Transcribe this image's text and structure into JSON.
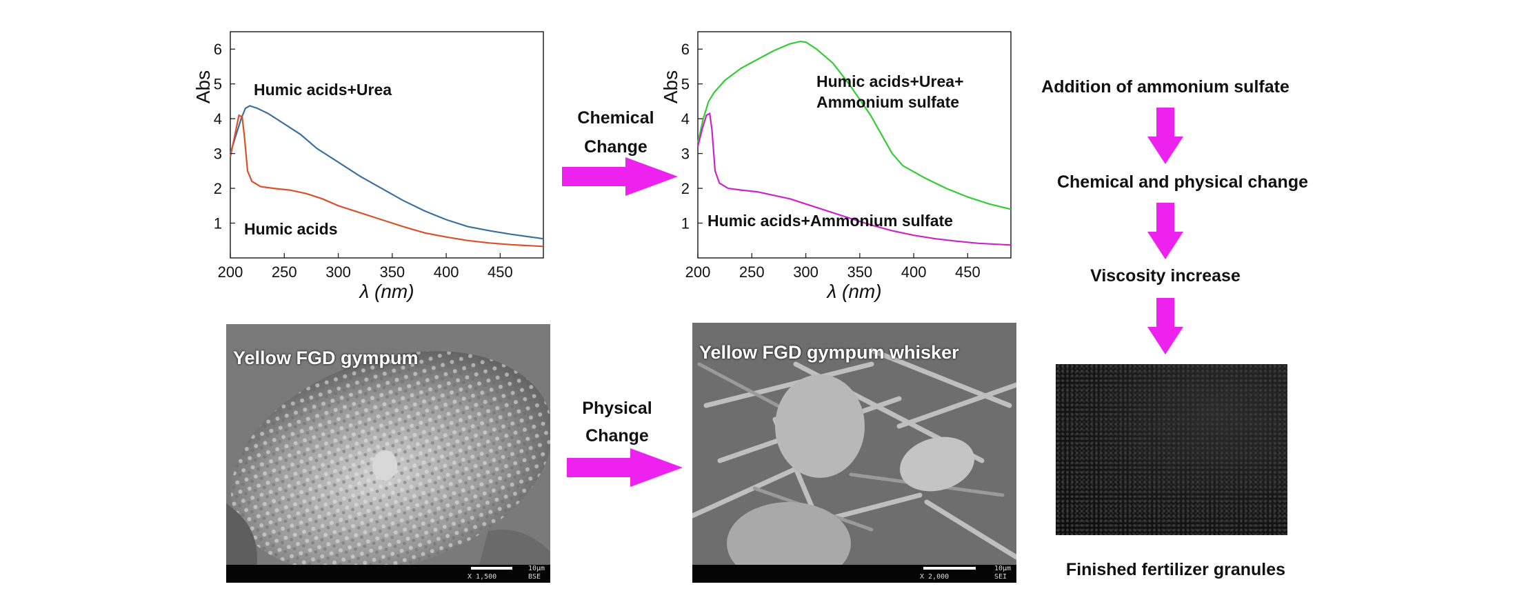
{
  "chart_data": [
    {
      "type": "line",
      "xlabel": "λ (nm)",
      "ylabel": "Abs",
      "xlim": [
        200,
        490
      ],
      "ylim": [
        0,
        6.5
      ],
      "x_ticks": [
        200,
        250,
        300,
        350,
        400,
        450
      ],
      "y_ticks": [
        1,
        2,
        3,
        4,
        5,
        6
      ],
      "series": [
        {
          "name": "Humic acids+Urea",
          "color": "#3b6fa0",
          "x": [
            200,
            205,
            210,
            214,
            218,
            225,
            235,
            250,
            265,
            280,
            300,
            320,
            340,
            360,
            380,
            400,
            420,
            440,
            460,
            490
          ],
          "y": [
            3.0,
            3.5,
            4.0,
            4.3,
            4.37,
            4.3,
            4.15,
            3.85,
            3.55,
            3.15,
            2.75,
            2.35,
            2.0,
            1.65,
            1.35,
            1.1,
            0.9,
            0.78,
            0.68,
            0.55
          ]
        },
        {
          "name": "Humic acids",
          "color": "#d9502a",
          "x": [
            200,
            204,
            208,
            211,
            213,
            216,
            220,
            228,
            240,
            255,
            270,
            285,
            300,
            320,
            340,
            360,
            380,
            400,
            420,
            440,
            460,
            490
          ],
          "y": [
            2.9,
            3.5,
            4.1,
            4.05,
            3.5,
            2.5,
            2.2,
            2.05,
            2.0,
            1.95,
            1.85,
            1.7,
            1.5,
            1.3,
            1.1,
            0.9,
            0.72,
            0.6,
            0.5,
            0.43,
            0.38,
            0.33
          ]
        }
      ]
    },
    {
      "type": "line",
      "xlabel": "λ (nm)",
      "ylabel": "Abs",
      "xlim": [
        200,
        490
      ],
      "ylim": [
        0,
        6.5
      ],
      "x_ticks": [
        200,
        250,
        300,
        350,
        400,
        450
      ],
      "y_ticks": [
        1,
        2,
        3,
        4,
        5,
        6
      ],
      "series": [
        {
          "name": "Humic acids+Urea+ Ammonium sulfate",
          "color": "#33cc33",
          "x": [
            200,
            205,
            210,
            215,
            225,
            240,
            255,
            270,
            285,
            295,
            300,
            310,
            325,
            340,
            360,
            380,
            390,
            410,
            430,
            450,
            470,
            490
          ],
          "y": [
            3.3,
            4.0,
            4.5,
            4.75,
            5.1,
            5.45,
            5.7,
            5.95,
            6.15,
            6.22,
            6.2,
            6.0,
            5.6,
            5.0,
            4.1,
            3.0,
            2.65,
            2.3,
            2.0,
            1.75,
            1.55,
            1.4
          ]
        },
        {
          "name": "Humic acids+Ammonium sulfate",
          "color": "#cc22cc",
          "x": [
            200,
            204,
            208,
            211,
            213,
            216,
            220,
            228,
            240,
            255,
            270,
            285,
            300,
            320,
            340,
            360,
            380,
            400,
            420,
            440,
            460,
            490
          ],
          "y": [
            3.2,
            3.7,
            4.1,
            4.15,
            3.7,
            2.5,
            2.15,
            2.0,
            1.95,
            1.9,
            1.8,
            1.7,
            1.55,
            1.35,
            1.15,
            0.95,
            0.78,
            0.65,
            0.55,
            0.48,
            0.42,
            0.37
          ]
        }
      ]
    }
  ],
  "arrows": {
    "chemical": "Chemical\nChange",
    "physical": "Physical\nChange",
    "arrow_color": "#ee22ee"
  },
  "flow": {
    "steps": [
      "Addition of ammonium sulfate",
      "Chemical and physical change",
      "Viscosity increase"
    ],
    "final_caption": "Finished fertilizer granules"
  },
  "sem_images": [
    {
      "caption": "Yellow FGD gympum",
      "scale_label": "10μm",
      "mag_label": "X 1,500",
      "mode_label": "BSE"
    },
    {
      "caption": "Yellow FGD gympum  whisker",
      "scale_label": "10μm",
      "mag_label": "X 2,000",
      "mode_label": "SEI"
    }
  ]
}
